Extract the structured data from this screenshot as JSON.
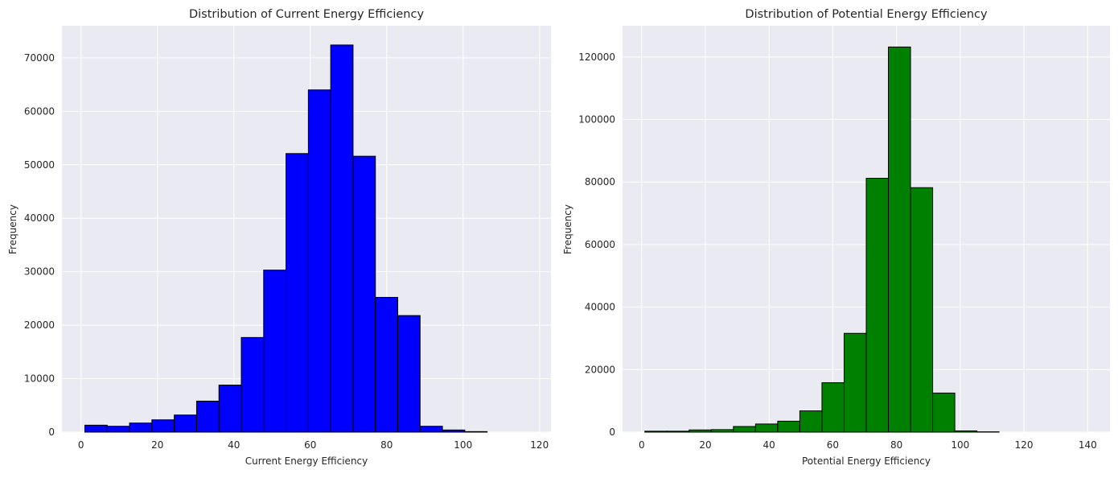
{
  "chart_data": [
    {
      "type": "bar",
      "title": "Distribution of Current Energy Efficiency",
      "xlabel": "Current Energy Efficiency",
      "ylabel": "Frequency",
      "xlim": [
        -5,
        123
      ],
      "ylim": [
        0,
        76000
      ],
      "xticks": [
        0,
        20,
        40,
        60,
        80,
        100,
        120
      ],
      "yticks": [
        0,
        10000,
        20000,
        30000,
        40000,
        50000,
        60000,
        70000
      ],
      "bin_edges": [
        1,
        6.85,
        12.7,
        18.55,
        24.4,
        30.25,
        36.1,
        41.95,
        47.8,
        53.65,
        59.5,
        65.35,
        71.2,
        77.05,
        82.9,
        88.75,
        94.6,
        100.45,
        106.3,
        112.15,
        118
      ],
      "values": [
        1300,
        1100,
        1700,
        2300,
        3200,
        5800,
        8800,
        17700,
        30300,
        52100,
        64000,
        72400,
        51600,
        25200,
        21800,
        1100,
        400,
        100,
        0,
        0
      ],
      "bar_color": "#0000ff",
      "edge_color": "#000000",
      "grid": true,
      "background": "#eaeaf2"
    },
    {
      "type": "bar",
      "title": "Distribution of Potential Energy Efficiency",
      "xlabel": "Potential Energy Efficiency",
      "ylabel": "Frequency",
      "xlim": [
        -6,
        147
      ],
      "ylim": [
        0,
        130000
      ],
      "xticks": [
        0,
        20,
        40,
        60,
        80,
        100,
        120,
        140
      ],
      "yticks": [
        0,
        20000,
        40000,
        60000,
        80000,
        100000,
        120000
      ],
      "bin_edges": [
        1,
        7.95,
        14.9,
        21.85,
        28.8,
        35.75,
        42.7,
        49.65,
        56.6,
        63.55,
        70.5,
        77.45,
        84.4,
        91.35,
        98.3,
        105.25,
        112.2,
        119.15,
        126.1,
        133.05,
        140
      ],
      "values": [
        300,
        300,
        700,
        800,
        1800,
        2600,
        3500,
        6800,
        15800,
        31600,
        81200,
        123200,
        78200,
        12500,
        400,
        100,
        0,
        0,
        0,
        0
      ],
      "bar_color": "#008000",
      "edge_color": "#000000",
      "grid": true,
      "background": "#eaeaf2"
    }
  ]
}
